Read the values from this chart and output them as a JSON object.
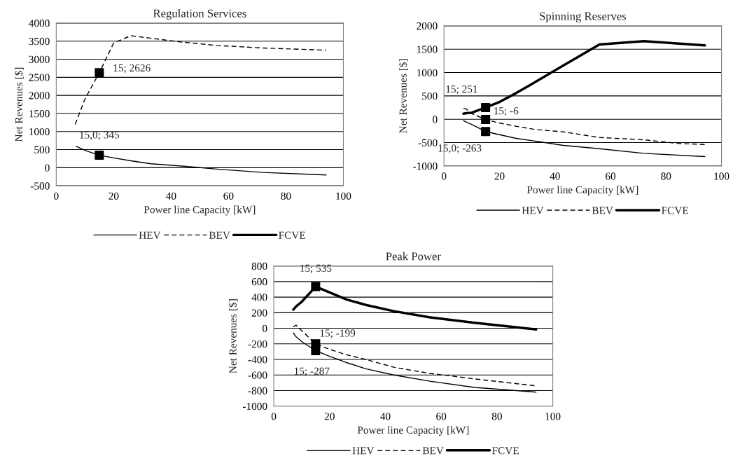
{
  "chart_data": [
    {
      "type": "line",
      "title": "Regulation Services",
      "xlabel": "Power line Capacity [kW]",
      "ylabel": "Net Revenues [$]",
      "xlim": [
        0,
        100
      ],
      "xticks": [
        0,
        20,
        40,
        60,
        80,
        100
      ],
      "ylim": [
        -500,
        4000
      ],
      "yticks": [
        -500,
        0,
        500,
        1000,
        1500,
        2000,
        2500,
        3000,
        3500,
        4000
      ],
      "grid": "y",
      "legend": "bottom",
      "series": [
        {
          "name": "HEV",
          "color": "#000000",
          "line_style": "solid",
          "x": [
            7,
            10,
            15,
            20,
            26,
            33,
            43,
            56,
            72,
            94
          ],
          "values": [
            590,
            480,
            345,
            270,
            190,
            110,
            50,
            -40,
            -130,
            -200
          ]
        },
        {
          "name": "BEV",
          "color": "#000000",
          "line_style": "dashed",
          "x": [
            6.6,
            10,
            15,
            20,
            26,
            33,
            43,
            56,
            72,
            94
          ],
          "values": [
            1200,
            1900,
            2626,
            3450,
            3650,
            3580,
            3480,
            3380,
            3310,
            3250
          ]
        },
        {
          "name": "FCVE",
          "color": "#000000",
          "line_style": "solid"
        },
        {
          "type": "scatter",
          "color": "#000000",
          "marker": "square",
          "x": [
            15,
            15
          ],
          "values": [
            2626,
            345
          ]
        }
      ],
      "annotations": [
        "15; 2626",
        "15,0; 345"
      ]
    },
    {
      "type": "line",
      "title": "Spinning Reserves",
      "xlabel": "Power line Capacity [kW]",
      "ylabel": "Net Revenues [$]",
      "xlim": [
        0,
        100
      ],
      "xticks": [
        0,
        20,
        40,
        60,
        80,
        100
      ],
      "ylim": [
        -1000,
        2000
      ],
      "yticks": [
        -1000,
        -500,
        0,
        500,
        1000,
        1500,
        2000
      ],
      "grid": "y",
      "legend": "bottom",
      "series": [
        {
          "name": "HEV",
          "color": "#000000",
          "line_style": "solid",
          "x": [
            7,
            8,
            10,
            15,
            20,
            26,
            33,
            43,
            56,
            72,
            94
          ],
          "values": [
            -30,
            -60,
            -110,
            -263,
            -330,
            -410,
            -470,
            -560,
            -630,
            -730,
            -800
          ]
        },
        {
          "name": "BEV",
          "color": "#000000",
          "line_style": "dashed",
          "x": [
            7,
            8,
            10,
            15,
            20,
            26,
            33,
            43,
            56,
            72,
            85,
            94
          ],
          "values": [
            230,
            220,
            120,
            -6,
            -80,
            -150,
            -220,
            -270,
            -390,
            -440,
            -520,
            -540
          ]
        },
        {
          "name": "FCVE",
          "color": "#000000",
          "line_style": "solid",
          "x": [
            7,
            8,
            10,
            15,
            20,
            26,
            33,
            43,
            56,
            72,
            94
          ],
          "values": [
            120,
            130,
            140,
            251,
            370,
            560,
            800,
            1150,
            1600,
            1670,
            1580
          ]
        },
        {
          "type": "scatter",
          "color": "#000000",
          "marker": "square",
          "x": [
            15,
            15,
            15
          ],
          "values": [
            251,
            -6,
            -263
          ]
        }
      ],
      "annotations": [
        "15; 251",
        "15; -6",
        "15,0; -263"
      ]
    },
    {
      "type": "line",
      "title": "Peak Power",
      "xlabel": "Power line Capacity [kW]",
      "ylabel": "Net Revenues [$]",
      "xlim": [
        0,
        100
      ],
      "xticks": [
        0,
        20,
        40,
        60,
        80,
        100
      ],
      "ylim": [
        -1000,
        800
      ],
      "yticks": [
        -1000,
        -800,
        -600,
        -400,
        -200,
        0,
        200,
        400,
        600,
        800
      ],
      "grid": "y",
      "legend": "bottom",
      "series": [
        {
          "name": "HEV",
          "color": "#000000",
          "line_style": "solid",
          "x": [
            7,
            8,
            10,
            15,
            20,
            26,
            33,
            43,
            56,
            72,
            94
          ],
          "values": [
            -60,
            -110,
            -170,
            -287,
            -360,
            -440,
            -520,
            -600,
            -680,
            -760,
            -820
          ]
        },
        {
          "name": "BEV",
          "color": "#000000",
          "line_style": "dashed",
          "x": [
            7,
            8,
            10,
            15,
            20,
            26,
            33,
            43,
            56,
            72,
            94
          ],
          "values": [
            20,
            40,
            -30,
            -199,
            -270,
            -340,
            -400,
            -500,
            -580,
            -650,
            -740
          ]
        },
        {
          "name": "FCVE",
          "color": "#000000",
          "line_style": "solid",
          "x": [
            7,
            8,
            10,
            15,
            20,
            26,
            33,
            43,
            56,
            72,
            94
          ],
          "values": [
            240,
            280,
            340,
            535,
            460,
            370,
            300,
            220,
            140,
            70,
            -15
          ]
        },
        {
          "type": "scatter",
          "color": "#000000",
          "marker": "square",
          "x": [
            15,
            15,
            15
          ],
          "values": [
            535,
            -199,
            -287
          ]
        }
      ],
      "annotations": [
        "15; 535",
        "15; -199",
        "15; -287"
      ]
    }
  ]
}
